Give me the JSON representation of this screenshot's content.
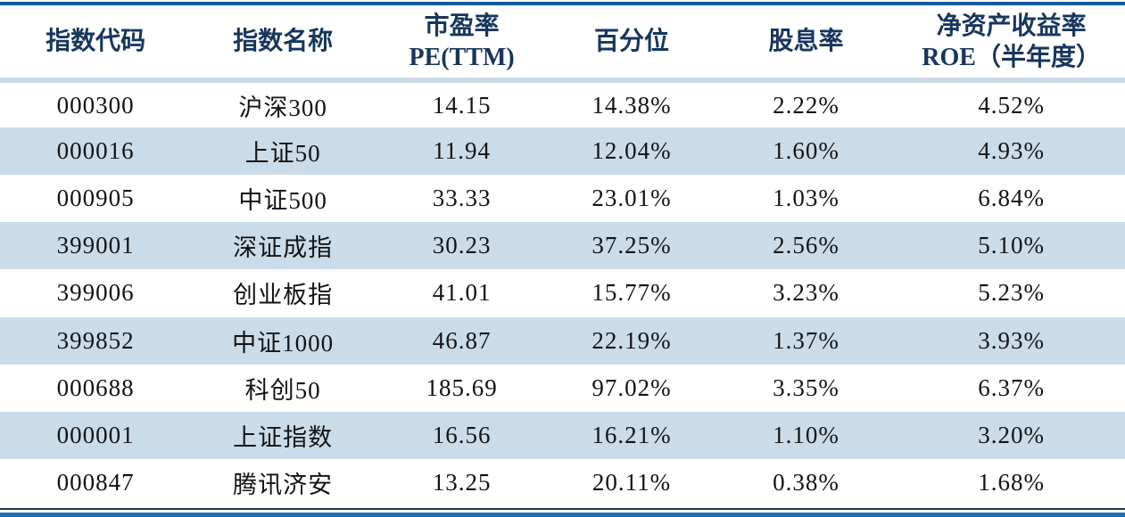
{
  "colors": {
    "top_line": "#1A5A96",
    "bottom_thick": "#1D70B8",
    "bottom_thin": "#17365D",
    "stripe": "#CADCEA",
    "header_text": "#17365D",
    "body_text": "#131313"
  },
  "chart_data": {
    "type": "table",
    "columns": [
      {
        "id": "index_code",
        "line1": "指数代码",
        "line2": ""
      },
      {
        "id": "index_name",
        "line1": "指数名称",
        "line2": ""
      },
      {
        "id": "pe_ttm",
        "line1": "市盈率",
        "line2": "PE(TTM)"
      },
      {
        "id": "percentile",
        "line1": "百分位",
        "line2": ""
      },
      {
        "id": "dividend_yield",
        "line1": "股息率",
        "line2": ""
      },
      {
        "id": "roe",
        "line1": "净资产收益率",
        "line2": "ROE（半年度）"
      }
    ],
    "rows": [
      [
        "000300",
        "沪深300",
        "14.15",
        "14.38%",
        "2.22%",
        "4.52%"
      ],
      [
        "000016",
        "上证50",
        "11.94",
        "12.04%",
        "1.60%",
        "4.93%"
      ],
      [
        "000905",
        "中证500",
        "33.33",
        "23.01%",
        "1.03%",
        "6.84%"
      ],
      [
        "399001",
        "深证成指",
        "30.23",
        "37.25%",
        "2.56%",
        "5.10%"
      ],
      [
        "399006",
        "创业板指",
        "41.01",
        "15.77%",
        "3.23%",
        "5.23%"
      ],
      [
        "399852",
        "中证1000",
        "46.87",
        "22.19%",
        "1.37%",
        "3.93%"
      ],
      [
        "000688",
        "科创50",
        "185.69",
        "97.02%",
        "3.35%",
        "6.37%"
      ],
      [
        "000001",
        "上证指数",
        "16.56",
        "16.21%",
        "1.10%",
        "3.20%"
      ],
      [
        "000847",
        "腾讯济安",
        "13.25",
        "20.11%",
        "0.38%",
        "1.68%"
      ]
    ]
  }
}
